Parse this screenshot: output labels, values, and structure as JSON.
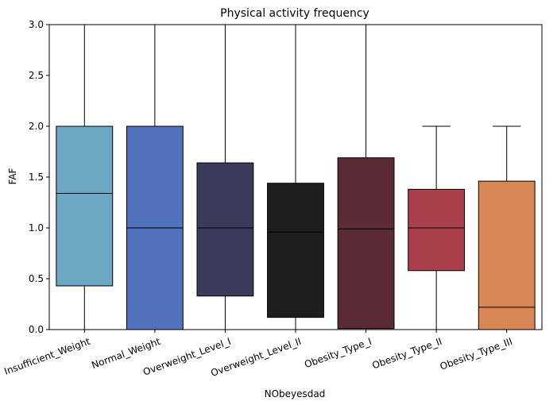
{
  "chart_data": {
    "type": "box",
    "title": "Physical activity frequency",
    "xlabel": "NObeyesdad",
    "ylabel": "FAF",
    "ylim": [
      0,
      3
    ],
    "yticks": [
      "0.0",
      "0.5",
      "1.0",
      "1.5",
      "2.0",
      "2.5",
      "3.0"
    ],
    "grid": false,
    "categories": [
      "Insufficient_Weight",
      "Normal_Weight",
      "Overweight_Level_I",
      "Overweight_Level_II",
      "Obesity_Type_I",
      "Obesity_Type_II",
      "Obesity_Type_III"
    ],
    "boxes": [
      {
        "category": "Insufficient_Weight",
        "whisker_low": 0.0,
        "q1": 0.43,
        "median": 1.34,
        "q3": 2.0,
        "whisker_high": 3.0,
        "color": "#6CA7C3"
      },
      {
        "category": "Normal_Weight",
        "whisker_low": 0.0,
        "q1": 0.0,
        "median": 1.0,
        "q3": 2.0,
        "whisker_high": 3.0,
        "color": "#5272BE"
      },
      {
        "category": "Overweight_Level_I",
        "whisker_low": 0.0,
        "q1": 0.33,
        "median": 1.0,
        "q3": 1.64,
        "whisker_high": 3.0,
        "color": "#3B3A5A"
      },
      {
        "category": "Overweight_Level_II",
        "whisker_low": 0.0,
        "q1": 0.12,
        "median": 0.96,
        "q3": 1.44,
        "whisker_high": 3.0,
        "color": "#1E1E1E"
      },
      {
        "category": "Obesity_Type_I",
        "whisker_low": 0.0,
        "q1": 0.01,
        "median": 0.99,
        "q3": 1.69,
        "whisker_high": 3.0,
        "color": "#5B2C36"
      },
      {
        "category": "Obesity_Type_II",
        "whisker_low": 0.0,
        "q1": 0.58,
        "median": 1.0,
        "q3": 1.38,
        "whisker_high": 2.0,
        "color": "#AA404C"
      },
      {
        "category": "Obesity_Type_III",
        "whisker_low": 0.0,
        "q1": 0.0,
        "median": 0.22,
        "q3": 1.46,
        "whisker_high": 2.0,
        "color": "#D98655"
      }
    ]
  }
}
